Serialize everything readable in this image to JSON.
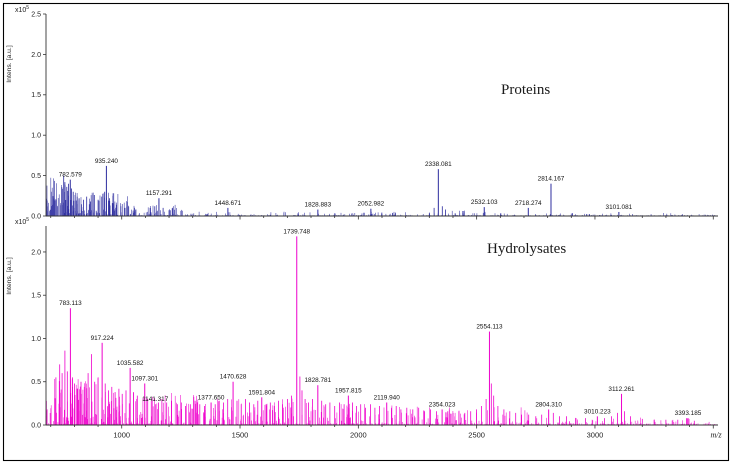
{
  "figure": {
    "background": "#ffffff",
    "frame_color": "#000000"
  },
  "axes": {
    "y_label": "Intens. [a.u.]",
    "y_scale_note": "x10",
    "y_scale_exp": "5",
    "x_label": "m/z",
    "x_range": [
      680,
      3520
    ],
    "x_ticks": [
      1000,
      1500,
      2000,
      2500,
      3000
    ]
  },
  "chart_data": [
    {
      "type": "line",
      "name": "proteins-spectrum",
      "title": "Proteins",
      "color": "#2B2B9E",
      "ylim": [
        0,
        2.5
      ],
      "y_ticks": [
        0.0,
        0.5,
        1.0,
        1.5,
        2.0,
        2.5
      ],
      "peaks": [
        {
          "mz": 782.579,
          "intensity": 0.45,
          "label": "782.579"
        },
        {
          "mz": 935.24,
          "intensity": 0.62,
          "label": "935.240"
        },
        {
          "mz": 1157.291,
          "intensity": 0.22,
          "label": "1157.291"
        },
        {
          "mz": 1448.671,
          "intensity": 0.1,
          "label": "1448.671"
        },
        {
          "mz": 1828.883,
          "intensity": 0.08,
          "label": "1828.883"
        },
        {
          "mz": 2052.982,
          "intensity": 0.09,
          "label": "2052.982"
        },
        {
          "mz": 2338.081,
          "intensity": 0.58,
          "label": "2338.081"
        },
        {
          "mz": 2532.103,
          "intensity": 0.11,
          "label": "2532.103"
        },
        {
          "mz": 2718.274,
          "intensity": 0.1,
          "label": "2718.274"
        },
        {
          "mz": 2814.167,
          "intensity": 0.4,
          "label": "2814.167"
        },
        {
          "mz": 3101.081,
          "intensity": 0.05,
          "label": "3101.081"
        }
      ],
      "minor_peaks": [
        [
          755,
          0.5
        ],
        [
          760,
          0.42
        ],
        [
          768,
          0.36
        ],
        [
          775,
          0.4
        ],
        [
          788,
          0.34
        ],
        [
          795,
          0.3
        ],
        [
          803,
          0.26
        ],
        [
          812,
          0.24
        ],
        [
          820,
          0.22
        ],
        [
          838,
          0.2
        ],
        [
          852,
          0.24
        ],
        [
          868,
          0.18
        ],
        [
          884,
          0.26
        ],
        [
          900,
          0.2
        ],
        [
          916,
          0.24
        ],
        [
          928,
          0.3
        ],
        [
          948,
          0.22
        ],
        [
          960,
          0.16
        ],
        [
          978,
          0.14
        ],
        [
          996,
          0.12
        ],
        [
          1014,
          0.1
        ],
        [
          1060,
          0.08
        ],
        [
          1120,
          0.1
        ],
        [
          1140,
          0.12
        ],
        [
          1175,
          0.1
        ],
        [
          1205,
          0.07
        ],
        [
          2320,
          0.1
        ],
        [
          2355,
          0.12
        ],
        [
          2368,
          0.08
        ]
      ],
      "noise": {
        "seed": 101,
        "baseline": 0.012,
        "regions": [
          {
            "from": 680,
            "to": 780,
            "max": 0.5,
            "count": 90
          },
          {
            "from": 780,
            "to": 1030,
            "max": 0.3,
            "count": 110
          },
          {
            "from": 1030,
            "to": 1260,
            "max": 0.13,
            "count": 60
          },
          {
            "from": 1260,
            "to": 2320,
            "max": 0.045,
            "count": 130
          },
          {
            "from": 2320,
            "to": 2620,
            "max": 0.06,
            "count": 45
          },
          {
            "from": 2620,
            "to": 3510,
            "max": 0.03,
            "count": 80
          }
        ]
      }
    },
    {
      "type": "line",
      "name": "hydrolysates-spectrum",
      "title": "Hydrolysates",
      "color": "#EE00CC",
      "ylim": [
        0,
        2.3
      ],
      "y_ticks": [
        0.0,
        0.5,
        1.0,
        1.5,
        2.0
      ],
      "peaks": [
        {
          "mz": 783.113,
          "intensity": 1.35,
          "label": "783.113"
        },
        {
          "mz": 917.224,
          "intensity": 0.95,
          "label": "917.224"
        },
        {
          "mz": 1035.582,
          "intensity": 0.66,
          "label": "1035.582"
        },
        {
          "mz": 1097.301,
          "intensity": 0.48,
          "label": "1097.301"
        },
        {
          "mz": 1141.317,
          "intensity": 0.24,
          "label": "1141.317"
        },
        {
          "mz": 1377.65,
          "intensity": 0.26,
          "label": "1377.650"
        },
        {
          "mz": 1470.628,
          "intensity": 0.5,
          "label": "1470.628"
        },
        {
          "mz": 1591.804,
          "intensity": 0.32,
          "label": "1591.804"
        },
        {
          "mz": 1739.748,
          "intensity": 2.18,
          "label": "1739.748"
        },
        {
          "mz": 1828.781,
          "intensity": 0.46,
          "label": "1828.781"
        },
        {
          "mz": 1957.815,
          "intensity": 0.34,
          "label": "1957.815"
        },
        {
          "mz": 2119.94,
          "intensity": 0.26,
          "label": "2119.940"
        },
        {
          "mz": 2354.023,
          "intensity": 0.18,
          "label": "2354.023"
        },
        {
          "mz": 2554.113,
          "intensity": 1.08,
          "label": "2554.113"
        },
        {
          "mz": 2804.31,
          "intensity": 0.18,
          "label": "2804.310"
        },
        {
          "mz": 3010.223,
          "intensity": 0.1,
          "label": "3010.223"
        },
        {
          "mz": 3112.261,
          "intensity": 0.36,
          "label": "3112.261"
        },
        {
          "mz": 3393.185,
          "intensity": 0.08,
          "label": "3393.185"
        }
      ],
      "minor_peaks": [
        [
          722,
          0.55
        ],
        [
          738,
          0.7
        ],
        [
          748,
          0.6
        ],
        [
          760,
          0.86
        ],
        [
          770,
          0.62
        ],
        [
          792,
          0.55
        ],
        [
          800,
          0.48
        ],
        [
          812,
          0.42
        ],
        [
          828,
          0.5
        ],
        [
          842,
          0.44
        ],
        [
          858,
          0.6
        ],
        [
          872,
          0.82
        ],
        [
          886,
          0.5
        ],
        [
          900,
          0.55
        ],
        [
          930,
          0.48
        ],
        [
          944,
          0.4
        ],
        [
          958,
          0.44
        ],
        [
          972,
          0.38
        ],
        [
          988,
          0.42
        ],
        [
          1002,
          0.36
        ],
        [
          1018,
          0.4
        ],
        [
          1050,
          0.38
        ],
        [
          1066,
          0.34
        ],
        [
          1110,
          0.3
        ],
        [
          1125,
          0.28
        ],
        [
          1155,
          0.26
        ],
        [
          1170,
          0.3
        ],
        [
          1190,
          0.26
        ],
        [
          1210,
          0.28
        ],
        [
          1235,
          0.24
        ],
        [
          1252,
          0.26
        ],
        [
          1270,
          0.22
        ],
        [
          1290,
          0.24
        ],
        [
          1310,
          0.28
        ],
        [
          1330,
          0.24
        ],
        [
          1350,
          0.22
        ],
        [
          1395,
          0.24
        ],
        [
          1412,
          0.28
        ],
        [
          1430,
          0.26
        ],
        [
          1448,
          0.3
        ],
        [
          1487,
          0.28
        ],
        [
          1505,
          0.24
        ],
        [
          1523,
          0.3
        ],
        [
          1540,
          0.26
        ],
        [
          1558,
          0.24
        ],
        [
          1575,
          0.28
        ],
        [
          1610,
          0.24
        ],
        [
          1628,
          0.26
        ],
        [
          1645,
          0.22
        ],
        [
          1662,
          0.28
        ],
        [
          1680,
          0.24
        ],
        [
          1700,
          0.3
        ],
        [
          1718,
          0.34
        ],
        [
          1753,
          0.56
        ],
        [
          1762,
          0.4
        ],
        [
          1775,
          0.3
        ],
        [
          1790,
          0.26
        ],
        [
          1806,
          0.3
        ],
        [
          1845,
          0.28
        ],
        [
          1862,
          0.24
        ],
        [
          1880,
          0.26
        ],
        [
          1900,
          0.22
        ],
        [
          1920,
          0.26
        ],
        [
          1940,
          0.24
        ],
        [
          1975,
          0.26
        ],
        [
          1992,
          0.22
        ],
        [
          2010,
          0.24
        ],
        [
          2030,
          0.2
        ],
        [
          2052,
          0.24
        ],
        [
          2070,
          0.2
        ],
        [
          2090,
          0.22
        ],
        [
          2140,
          0.2
        ],
        [
          2160,
          0.22
        ],
        [
          2180,
          0.18
        ],
        [
          2205,
          0.2
        ],
        [
          2230,
          0.18
        ],
        [
          2255,
          0.2
        ],
        [
          2280,
          0.16
        ],
        [
          2305,
          0.18
        ],
        [
          2330,
          0.16
        ],
        [
          2378,
          0.16
        ],
        [
          2400,
          0.14
        ],
        [
          2425,
          0.16
        ],
        [
          2450,
          0.14
        ],
        [
          2475,
          0.16
        ],
        [
          2500,
          0.18
        ],
        [
          2520,
          0.22
        ],
        [
          2540,
          0.3
        ],
        [
          2562,
          0.48
        ],
        [
          2572,
          0.34
        ],
        [
          2590,
          0.22
        ],
        [
          2615,
          0.18
        ],
        [
          2640,
          0.16
        ],
        [
          2665,
          0.14
        ],
        [
          2690,
          0.12
        ],
        [
          2720,
          0.12
        ],
        [
          2750,
          0.1
        ],
        [
          2775,
          0.12
        ],
        [
          2824,
          0.14
        ],
        [
          2850,
          0.1
        ],
        [
          2880,
          0.1
        ],
        [
          2920,
          0.08
        ],
        [
          2960,
          0.08
        ],
        [
          3040,
          0.08
        ],
        [
          3070,
          0.1
        ],
        [
          3095,
          0.14
        ],
        [
          3125,
          0.16
        ],
        [
          3150,
          0.1
        ],
        [
          3200,
          0.07
        ],
        [
          3250,
          0.06
        ],
        [
          3300,
          0.06
        ],
        [
          3350,
          0.06
        ],
        [
          3420,
          0.05
        ]
      ],
      "noise": {
        "seed": 202,
        "baseline": 0.02,
        "regions": [
          {
            "from": 680,
            "to": 900,
            "max": 0.55,
            "count": 110
          },
          {
            "from": 900,
            "to": 1320,
            "max": 0.38,
            "count": 130
          },
          {
            "from": 1320,
            "to": 1830,
            "max": 0.3,
            "count": 120
          },
          {
            "from": 1830,
            "to": 2330,
            "max": 0.24,
            "count": 100
          },
          {
            "from": 2330,
            "to": 2730,
            "max": 0.2,
            "count": 70
          },
          {
            "from": 2730,
            "to": 3510,
            "max": 0.08,
            "count": 80
          }
        ]
      }
    }
  ]
}
